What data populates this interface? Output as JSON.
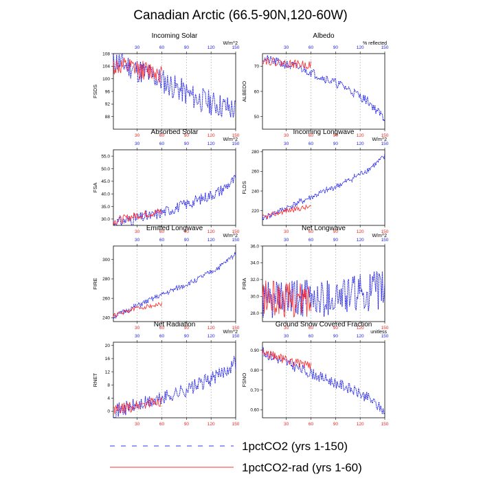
{
  "page": {
    "title": "Canadian Arctic (66.5-90N,120-60W)"
  },
  "legend": {
    "items": [
      {
        "label": "1pctCO2 (yrs 1-150)",
        "color": "#3333ee",
        "style": "dashed"
      },
      {
        "label": "1pctCO2-rad (yrs 1-60)",
        "color": "#ff3333",
        "style": "solid"
      }
    ]
  },
  "colors": {
    "run1": "#1a1aee",
    "run2": "#ff2222",
    "top_axis": "#1a1aee",
    "bottom_axis": "#ee2222",
    "grid": "#aaaaaa"
  },
  "chart_data": [
    {
      "type": "line",
      "title": "Incoming Solar",
      "ylabel": "FSDS",
      "units": "W/m^2",
      "xlim": [
        1,
        150
      ],
      "ylim": [
        84,
        108
      ],
      "yticks": [
        88,
        92,
        96,
        100,
        104,
        108
      ],
      "ytick_labels": [
        "88",
        "92",
        "96",
        "100",
        "104",
        "108"
      ],
      "xticks_top": [
        30,
        60,
        90,
        120,
        150
      ],
      "xticks_bottom": [
        30,
        60,
        90,
        120,
        150
      ],
      "series": [
        {
          "name": "1pctCO2 (yrs 1-150)",
          "x_range": [
            1,
            150
          ],
          "trend": [
            [
              1,
              106
            ],
            [
              20,
              104
            ],
            [
              60,
              99.5
            ],
            [
              100,
              94
            ],
            [
              150,
              90
            ]
          ],
          "noise": 4.5,
          "seed": 11
        },
        {
          "name": "1pctCO2-rad (yrs 1-60)",
          "x_range": [
            1,
            60
          ],
          "trend": [
            [
              1,
              104
            ],
            [
              30,
              103
            ],
            [
              60,
              102
            ]
          ],
          "noise": 3.5,
          "seed": 12
        }
      ]
    },
    {
      "type": "line",
      "title": "Albedo",
      "ylabel": "ALBEDO",
      "units": "% reflected",
      "xlim": [
        1,
        150
      ],
      "ylim": [
        45,
        75
      ],
      "yticks": [
        50,
        60,
        70
      ],
      "ytick_labels": [
        "50",
        "60",
        "70"
      ],
      "xticks_top": [
        30,
        60,
        90,
        120,
        150
      ],
      "xticks_bottom": [
        30,
        60,
        90,
        120,
        150
      ],
      "series": [
        {
          "name": "1pctCO2 (yrs 1-150)",
          "x_range": [
            1,
            150
          ],
          "trend": [
            [
              1,
              73
            ],
            [
              50,
              69
            ],
            [
              100,
              62
            ],
            [
              130,
              56
            ],
            [
              150,
              49
            ]
          ],
          "noise": 2,
          "seed": 21
        },
        {
          "name": "1pctCO2-rad (yrs 1-60)",
          "x_range": [
            1,
            60
          ],
          "trend": [
            [
              1,
              72.5
            ],
            [
              30,
              71
            ],
            [
              60,
              70.5
            ]
          ],
          "noise": 1.8,
          "seed": 22
        }
      ]
    },
    {
      "type": "line",
      "title": "Absorbed Solar",
      "ylabel": "FSA",
      "units": "W/m^2",
      "xlim": [
        1,
        150
      ],
      "ylim": [
        27.5,
        57.5
      ],
      "yticks": [
        30,
        35,
        40,
        45,
        50,
        55
      ],
      "ytick_labels": [
        "30.0",
        "35.0",
        "40.0",
        "45.0",
        "50.0",
        "55.0"
      ],
      "xticks_top": [
        30,
        60,
        90,
        120,
        150
      ],
      "xticks_bottom": [
        30,
        60,
        90,
        120,
        150
      ],
      "series": [
        {
          "name": "1pctCO2 (yrs 1-150)",
          "x_range": [
            1,
            150
          ],
          "trend": [
            [
              1,
              28.5
            ],
            [
              50,
              31.5
            ],
            [
              100,
              37
            ],
            [
              130,
              41
            ],
            [
              150,
              46
            ]
          ],
          "noise": 2.5,
          "seed": 31
        },
        {
          "name": "1pctCO2-rad (yrs 1-60)",
          "x_range": [
            1,
            60
          ],
          "trend": [
            [
              1,
              29
            ],
            [
              30,
              31.5
            ],
            [
              60,
              33
            ]
          ],
          "noise": 1.8,
          "seed": 32
        }
      ]
    },
    {
      "type": "line",
      "title": "Incoming Longwave",
      "ylabel": "FLDS",
      "units": "W/m^2",
      "xlim": [
        1,
        150
      ],
      "ylim": [
        205,
        282
      ],
      "yticks": [
        220,
        240,
        260,
        280
      ],
      "ytick_labels": [
        "220",
        "240",
        "260",
        "280"
      ],
      "xticks_top": [
        30,
        60,
        90,
        120,
        150
      ],
      "xticks_bottom": [
        30,
        60,
        90,
        120,
        150
      ],
      "series": [
        {
          "name": "1pctCO2 (yrs 1-150)",
          "x_range": [
            1,
            150
          ],
          "trend": [
            [
              1,
              212
            ],
            [
              50,
              230
            ],
            [
              100,
              248
            ],
            [
              130,
              262
            ],
            [
              150,
              275
            ]
          ],
          "noise": 3.5,
          "seed": 41
        },
        {
          "name": "1pctCO2-rad (yrs 1-60)",
          "x_range": [
            1,
            60
          ],
          "trend": [
            [
              1,
              213
            ],
            [
              30,
              220
            ],
            [
              60,
              224
            ]
          ],
          "noise": 3,
          "seed": 42
        }
      ]
    },
    {
      "type": "line",
      "title": "Emitted Longwave",
      "ylabel": "FIRE",
      "units": "W/m^2",
      "xlim": [
        1,
        150
      ],
      "ylim": [
        236,
        314
      ],
      "yticks": [
        240,
        260,
        280,
        300
      ],
      "ytick_labels": [
        "240",
        "260",
        "280",
        "300"
      ],
      "xticks_top": [
        30,
        60,
        90,
        120,
        150
      ],
      "xticks_bottom": [
        30,
        60,
        90,
        120,
        150
      ],
      "series": [
        {
          "name": "1pctCO2 (yrs 1-150)",
          "x_range": [
            1,
            150
          ],
          "trend": [
            [
              1,
              241
            ],
            [
              50,
              260
            ],
            [
              100,
              278
            ],
            [
              130,
              292
            ],
            [
              150,
              306
            ]
          ],
          "noise": 3,
          "seed": 51
        },
        {
          "name": "1pctCO2-rad (yrs 1-60)",
          "x_range": [
            1,
            60
          ],
          "trend": [
            [
              1,
              242
            ],
            [
              30,
              250
            ],
            [
              60,
              254
            ]
          ],
          "noise": 2.5,
          "seed": 52
        }
      ]
    },
    {
      "type": "line",
      "title": "Net Longwave",
      "ylabel": "FIRA",
      "units": "W/m^2",
      "xlim": [
        1,
        150
      ],
      "ylim": [
        27,
        36
      ],
      "yticks": [
        28,
        30,
        32,
        34,
        36
      ],
      "ytick_labels": [
        "28.0",
        "30.0",
        "32.0",
        "34.0",
        "36.0"
      ],
      "xticks_top": [
        30,
        60,
        90,
        120,
        150
      ],
      "xticks_bottom": [
        30,
        60,
        90,
        120,
        150
      ],
      "series": [
        {
          "name": "1pctCO2 (yrs 1-150)",
          "x_range": [
            1,
            150
          ],
          "trend": [
            [
              1,
              29.5
            ],
            [
              75,
              29.8
            ],
            [
              150,
              30.8
            ]
          ],
          "noise": 2.6,
          "seed": 61
        },
        {
          "name": "1pctCO2-rad (yrs 1-60)",
          "x_range": [
            1,
            60
          ],
          "trend": [
            [
              1,
              29.8
            ],
            [
              30,
              29.6
            ],
            [
              60,
              29.5
            ]
          ],
          "noise": 2.4,
          "seed": 62
        }
      ]
    },
    {
      "type": "line",
      "title": "Net Radiation",
      "ylabel": "RNET",
      "units": "W/m^2",
      "xlim": [
        1,
        150
      ],
      "ylim": [
        -2,
        21
      ],
      "yticks": [
        0,
        4,
        8,
        12,
        16,
        20
      ],
      "ytick_labels": [
        "0",
        "4",
        "8",
        "12",
        "16",
        "20"
      ],
      "xticks_top": [
        30,
        60,
        90,
        120,
        150
      ],
      "xticks_bottom": [
        30,
        60,
        90,
        120,
        150
      ],
      "series": [
        {
          "name": "1pctCO2 (yrs 1-150)",
          "x_range": [
            1,
            150
          ],
          "trend": [
            [
              1,
              0
            ],
            [
              50,
              3
            ],
            [
              100,
              7.5
            ],
            [
              130,
              11
            ],
            [
              150,
              15
            ]
          ],
          "noise": 2.5,
          "seed": 71
        },
        {
          "name": "1pctCO2-rad (yrs 1-60)",
          "x_range": [
            1,
            60
          ],
          "trend": [
            [
              1,
              0
            ],
            [
              30,
              1.8
            ],
            [
              60,
              3.2
            ]
          ],
          "noise": 2,
          "seed": 72
        }
      ]
    },
    {
      "type": "line",
      "title": "Ground Snow Covered Fraction",
      "ylabel": "FSNO",
      "units": "unitless",
      "xlim": [
        1,
        150
      ],
      "ylim": [
        0.56,
        0.94
      ],
      "yticks": [
        0.6,
        0.7,
        0.8,
        0.9
      ],
      "ytick_labels": [
        "0.60",
        "0.70",
        "0.80",
        "0.90"
      ],
      "xticks_top": [
        30,
        60,
        90,
        120,
        150
      ],
      "xticks_bottom": [
        30,
        60,
        90,
        120,
        150
      ],
      "series": [
        {
          "name": "1pctCO2 (yrs 1-150)",
          "x_range": [
            1,
            150
          ],
          "trend": [
            [
              1,
              0.89
            ],
            [
              50,
              0.8
            ],
            [
              100,
              0.72
            ],
            [
              130,
              0.66
            ],
            [
              150,
              0.59
            ]
          ],
          "noise": 0.03,
          "seed": 81
        },
        {
          "name": "1pctCO2-rad (yrs 1-60)",
          "x_range": [
            1,
            60
          ],
          "trend": [
            [
              1,
              0.89
            ],
            [
              30,
              0.85
            ],
            [
              60,
              0.82
            ]
          ],
          "noise": 0.025,
          "seed": 82
        }
      ]
    }
  ]
}
